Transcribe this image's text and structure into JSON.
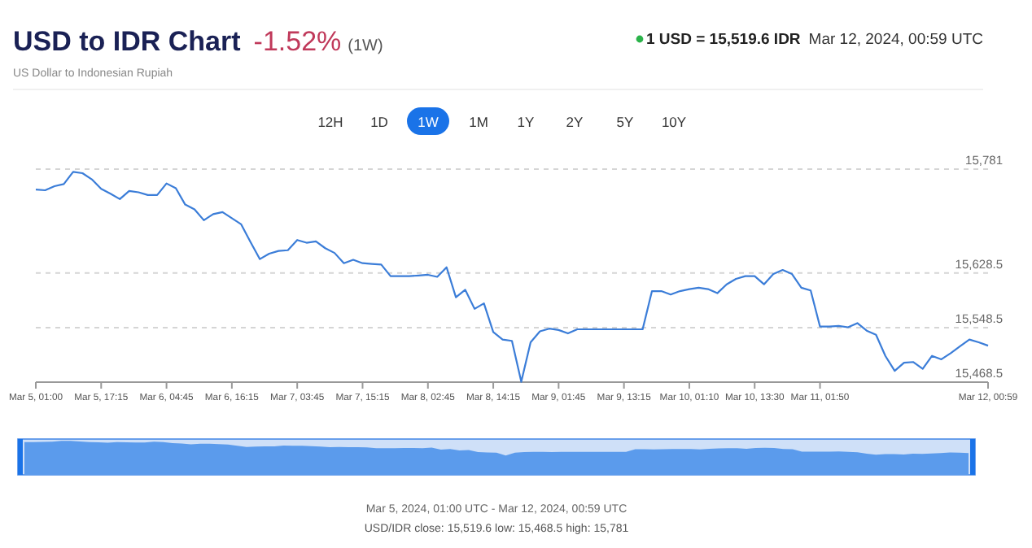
{
  "chart_data": {
    "type": "line",
    "title": "USD to IDR Chart",
    "subtitle": "US Dollar to Indonesian Rupiah",
    "annotations": [
      "-1.52%",
      "(1W)",
      "1 USD = 15,519.6 IDR",
      "Mar 12, 2024, 00:59 UTC",
      "12H",
      "1D",
      "1W",
      "1M",
      "1Y",
      "2Y",
      "5Y",
      "10Y",
      "Mar 5, 2024, 01:00 UTC - Mar 12, 2024, 00:59 UTC",
      "USD/IDR close: 15,519.6 low: 15,468.5 high: 15,781"
    ],
    "categories": [
      "Mar 5, 01:00",
      null,
      null,
      null,
      null,
      null,
      null,
      "Mar 5, 17:15",
      null,
      null,
      null,
      null,
      null,
      null,
      "Mar 6, 04:45",
      null,
      null,
      null,
      null,
      null,
      null,
      "Mar 6, 16:15",
      null,
      null,
      null,
      null,
      null,
      null,
      "Mar 7, 03:45",
      null,
      null,
      null,
      null,
      null,
      null,
      "Mar 7, 15:15",
      null,
      null,
      null,
      null,
      null,
      null,
      "Mar 8, 02:45",
      null,
      null,
      null,
      null,
      null,
      null,
      "Mar 8, 14:15",
      null,
      null,
      null,
      null,
      null,
      null,
      "Mar 9, 01:45",
      null,
      null,
      null,
      null,
      null,
      null,
      "Mar 9, 13:15",
      null,
      null,
      null,
      null,
      null,
      null,
      "Mar 10, 01:10",
      null,
      null,
      null,
      null,
      null,
      null,
      "Mar 10, 13:30",
      null,
      null,
      null,
      null,
      null,
      null,
      "Mar 11, 01:50",
      null,
      null,
      null,
      null,
      null,
      null,
      null,
      null,
      null,
      null,
      null,
      null,
      null,
      null,
      null,
      null,
      null,
      "Mar 12, 00:59"
    ],
    "ylim": [
      15468.5,
      15781
    ],
    "yticks": [
      {
        "value": 15468.5,
        "label": "15,468.5"
      },
      {
        "value": 15548.5,
        "label": "15,548.5"
      },
      {
        "value": 15628.5,
        "label": "15,628.5"
      },
      {
        "value": 15781,
        "label": "15,781"
      }
    ],
    "grid": "y",
    "marker": "none",
    "line_style": "solid",
    "series": [
      {
        "color": "#3b7dd8",
        "values": [
          15751,
          15750,
          15756,
          15759,
          15777,
          15775,
          15766,
          15752,
          15745,
          15737,
          15749,
          15747,
          15743,
          15743,
          15760,
          15753,
          15729,
          15722,
          15706,
          15715,
          15718,
          15709,
          15700,
          15674,
          15649,
          15657,
          15661,
          15662,
          15677,
          15673,
          15675,
          15665,
          15658,
          15643,
          15648,
          15643,
          15642,
          15641,
          15624,
          15624,
          15624,
          15625,
          15626,
          15623,
          15637,
          15593,
          15604,
          15576,
          15584,
          15542,
          15531,
          15529,
          15469,
          15527,
          15543,
          15547,
          15545,
          15540,
          15546,
          15546,
          15546,
          15546,
          15546,
          15546,
          15546,
          15546,
          15602,
          15602,
          15597,
          15602,
          15605,
          15607,
          15605,
          15599,
          15612,
          15620,
          15624,
          15624,
          15612,
          15627,
          15633,
          15627,
          15607,
          15603,
          15550,
          15550,
          15551,
          15549,
          15555,
          15544,
          15538,
          15507,
          15485,
          15497,
          15498,
          15488,
          15507,
          15502,
          15511,
          15521,
          15531,
          15527,
          15522
        ]
      }
    ]
  }
}
